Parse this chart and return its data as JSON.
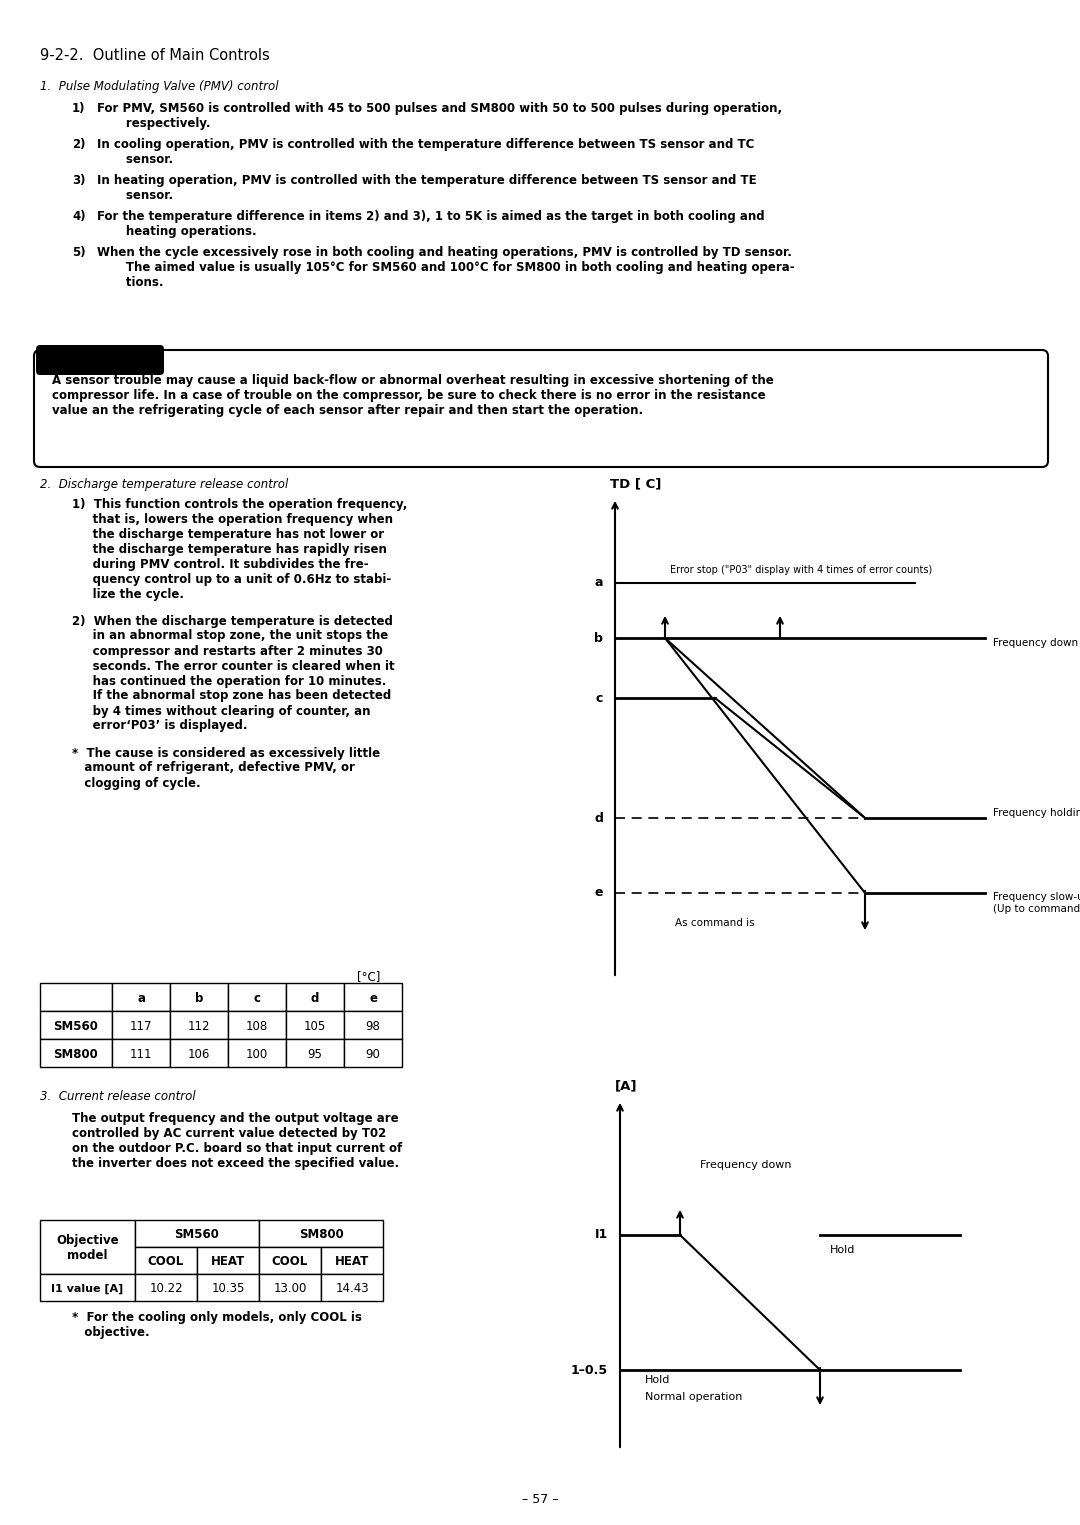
{
  "title": "9-2-2.  Outline of Main Controls",
  "section1_title": "1.  Pulse Modulating Valve (PMV) control",
  "warning_text": "A sensor trouble may cause a liquid back-flow or abnormal overheat resulting in excessive shortening of the\ncompressor life. In a case of trouble on the compressor, be sure to check there is no error in the resistance\nvalue an the refrigerating cycle of each sensor after repair and then start the operation.",
  "section2_title": "2.  Discharge temperature release control",
  "table1_header": [
    "",
    "a",
    "b",
    "c",
    "d",
    "e"
  ],
  "table1_rows": [
    [
      "SM560",
      "117",
      "112",
      "108",
      "105",
      "98"
    ],
    [
      "SM800",
      "111",
      "106",
      "100",
      "95",
      "90"
    ]
  ],
  "table1_unit": "[°C]",
  "section3_title": "3.  Current release control",
  "section3_text": "The output frequency and the output voltage are\ncontrolled by AC current value detected by T02\non the outdoor P.C. board so that input current of\nthe inverter does not exceed the specified value.",
  "note": "*  For the cooling only models, only COOL is\n   objective.",
  "page_number": "– 57 –",
  "td_chart_label": "TD [ C]",
  "current_chart_label": "[A]",
  "chart1_error_stop": "Error stop (\"P03\" display with 4 times of error counts)",
  "chart1_freq_down": "Frequency down",
  "chart1_freq_hold": "Frequency holding",
  "chart1_freq_slowup": "Frequency slow-up\n(Up to command)",
  "chart1_as_command": "As command is",
  "chart2_freq_down": "Frequency down",
  "chart2_hold1": "Hold",
  "chart2_hold2": "Hold",
  "chart2_normal": "Normal operation",
  "bg_color": "#ffffff",
  "text_color": "#000000"
}
